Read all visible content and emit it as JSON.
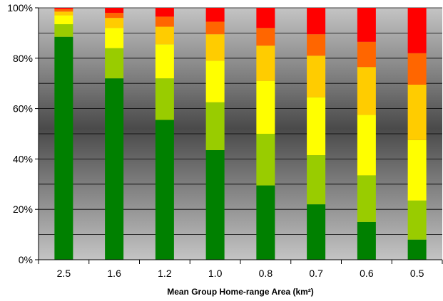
{
  "chart_data": {
    "type": "bar",
    "stacked": true,
    "percent_stacked": true,
    "categories": [
      "2.5",
      "1.6",
      "1.2",
      "1.0",
      "0.8",
      "0.7",
      "0.6",
      "0.5"
    ],
    "series": [
      {
        "color": "#008000",
        "values": [
          88.5,
          72.0,
          55.5,
          43.5,
          29.5,
          22.0,
          15.0,
          8.0
        ]
      },
      {
        "color": "#99CC00",
        "values": [
          5.0,
          12.0,
          16.5,
          19.0,
          20.5,
          19.5,
          18.5,
          15.5
        ]
      },
      {
        "color": "#FFFF00",
        "values": [
          3.5,
          8.0,
          13.5,
          16.5,
          21.0,
          23.0,
          24.0,
          24.0
        ]
      },
      {
        "color": "#FFCC00",
        "values": [
          1.5,
          4.0,
          7.0,
          10.5,
          14.0,
          16.5,
          19.0,
          22.0
        ]
      },
      {
        "color": "#FF6600",
        "values": [
          1.0,
          2.0,
          4.0,
          5.0,
          7.0,
          8.5,
          10.0,
          12.5
        ]
      },
      {
        "color": "#FF0000",
        "values": [
          0.5,
          2.0,
          3.5,
          5.5,
          8.0,
          10.5,
          13.5,
          18.0
        ]
      }
    ],
    "title": "",
    "xlabel": "Mean Group Home-range Area (km²)",
    "ylabel": "",
    "ylim": [
      0,
      100
    ],
    "yticks": [
      "0%",
      "20%",
      "40%",
      "60%",
      "80%",
      "100%"
    ],
    "grid": true,
    "legend": "none"
  }
}
